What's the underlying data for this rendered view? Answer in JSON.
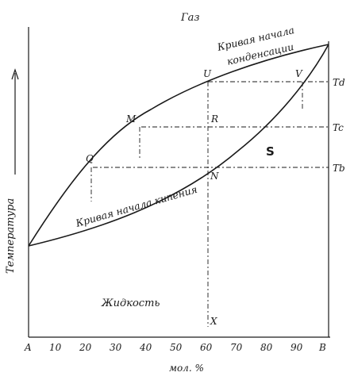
{
  "labels": {
    "gas": "Газ",
    "liquid": "Жидкость",
    "y_axis": "Температура",
    "x_axis": "мол. %",
    "dew_curve": [
      "Кривая начала",
      "конденсации"
    ],
    "bubble_curve": "Кривая начала кипения",
    "region": "S"
  },
  "points": {
    "Q": "Q",
    "M": "M",
    "U": "U",
    "R": "R",
    "V": "V",
    "N": "N",
    "X": "X"
  },
  "temperatures": {
    "Td": "Td",
    "Tc": "Tc",
    "Tb": "Tb"
  },
  "x_ticks": [
    "A",
    "10",
    "20",
    "30",
    "40",
    "50",
    "60",
    "70",
    "80",
    "90",
    "B"
  ]
}
